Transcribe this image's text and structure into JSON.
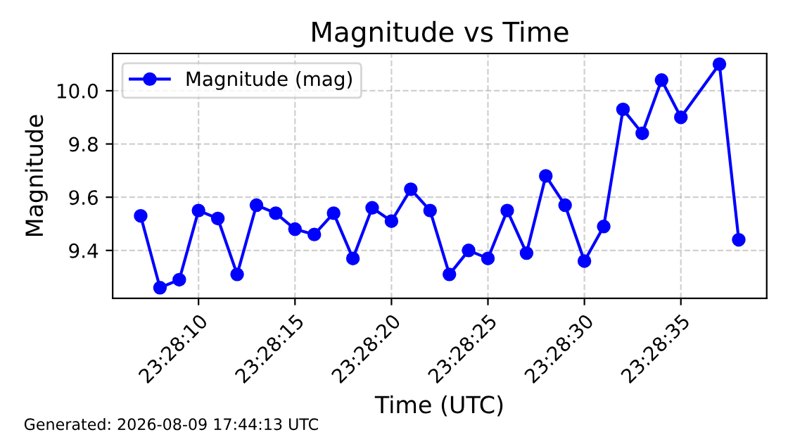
{
  "chart_data": {
    "type": "line",
    "title": "Magnitude vs Time",
    "xlabel": "Time (UTC)",
    "ylabel": "Magnitude",
    "x": [
      23.468611,
      23.468889,
      23.469167,
      23.469444,
      23.469722,
      23.47,
      23.470278,
      23.470556,
      23.470833,
      23.471111,
      23.471389,
      23.471667,
      23.471944,
      23.472222,
      23.4725,
      23.472778,
      23.473056,
      23.473333,
      23.473611,
      23.473889,
      23.474167,
      23.474444,
      23.474722,
      23.475,
      23.475278,
      23.475556,
      23.475833,
      23.476111,
      23.476389,
      23.476944,
      23.477222
    ],
    "series": [
      {
        "name": "Magnitude (mag)",
        "color": "#0000ff",
        "values": [
          9.53,
          9.26,
          9.29,
          9.55,
          9.52,
          9.31,
          9.57,
          9.54,
          9.48,
          9.46,
          9.54,
          9.37,
          9.56,
          9.51,
          9.63,
          9.55,
          9.31,
          9.4,
          9.37,
          9.55,
          9.39,
          9.68,
          9.57,
          9.36,
          9.49,
          9.93,
          9.84,
          10.04,
          9.9,
          10.1,
          9.44
        ]
      }
    ],
    "xlim": [
      23.468208,
      23.477625
    ],
    "xticks": [
      {
        "value": 23.469444,
        "label": "23:28:10"
      },
      {
        "value": 23.470833,
        "label": "23:28:15"
      },
      {
        "value": 23.472222,
        "label": "23:28:20"
      },
      {
        "value": 23.473611,
        "label": "23:28:25"
      },
      {
        "value": 23.475,
        "label": "23:28:30"
      },
      {
        "value": 23.476389,
        "label": "23:28:35"
      }
    ],
    "ylim": [
      9.22,
      10.14
    ],
    "yticks": [
      9.4,
      9.6,
      9.8,
      {
        "value": 10,
        "label": "10.0"
      }
    ],
    "grid": true,
    "legend": "top left",
    "marker": "circle",
    "line_style": "solid",
    "annotations": [
      "Generated: 2026-08-09 17:44:13 UTC"
    ]
  }
}
